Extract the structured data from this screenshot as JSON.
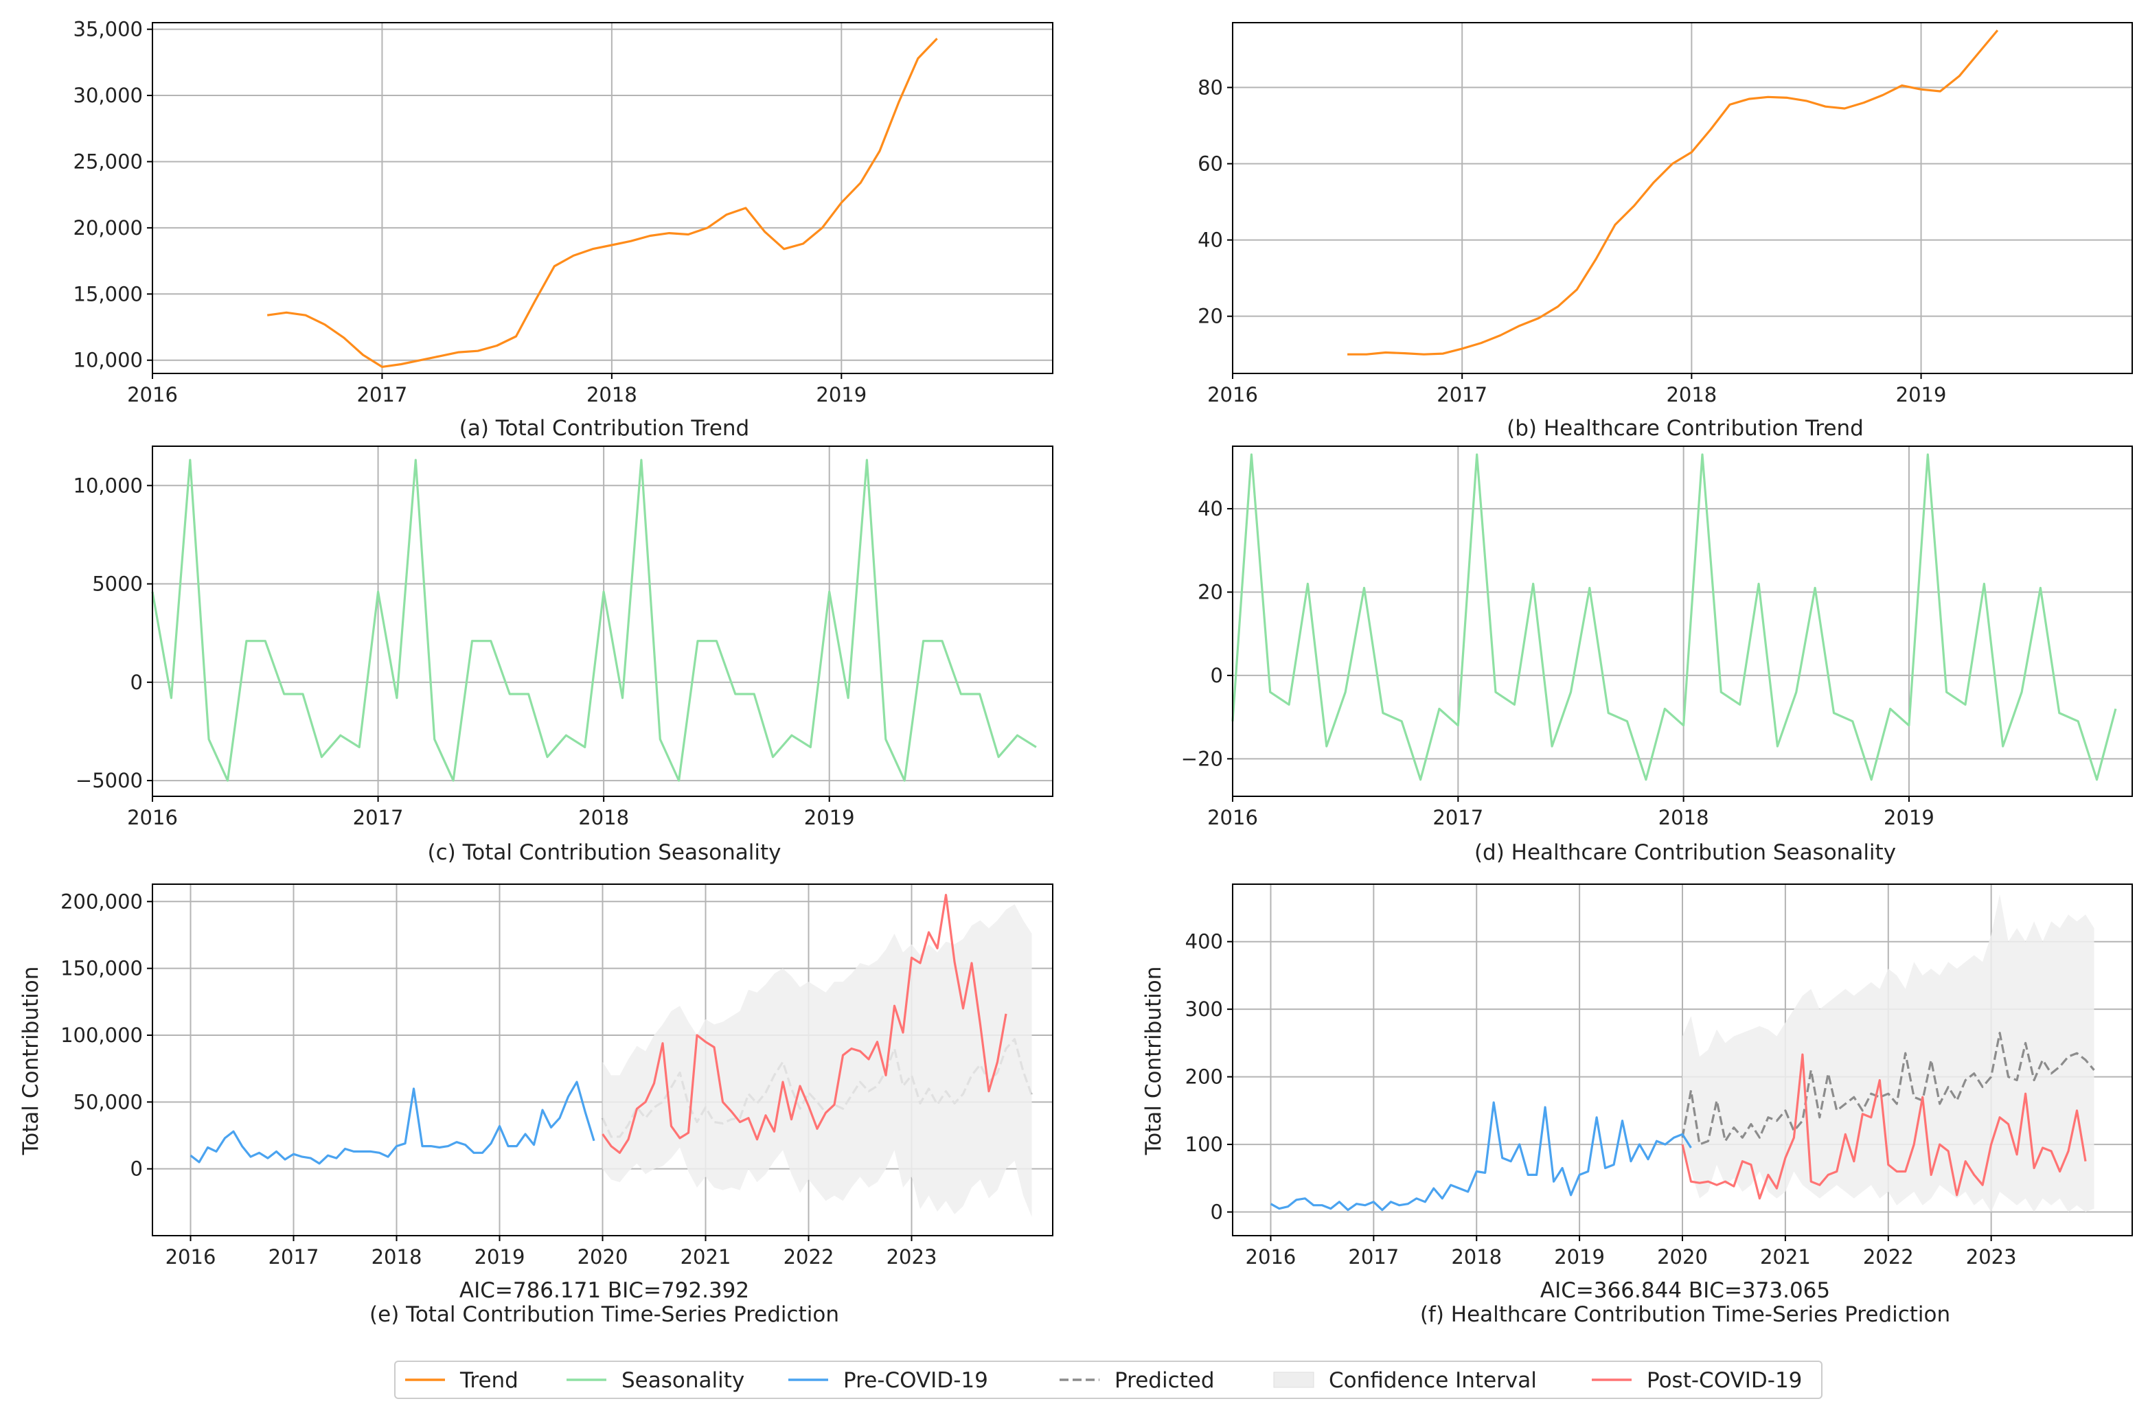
{
  "colors": {
    "trend": "#ff8c1a",
    "seasonality": "#8ee0a3",
    "pre_covid": "#4aa3f0",
    "predicted": "#8c8c8c",
    "confidence": "#eeeeee",
    "post_covid": "#ff7373",
    "grid": "#b4b4b4",
    "axis": "#000000"
  },
  "legend": [
    {
      "key": "trend",
      "label": "Trend",
      "style": "line"
    },
    {
      "key": "seasonality",
      "label": "Seasonality",
      "style": "line"
    },
    {
      "key": "pre_covid",
      "label": "Pre-COVID-19",
      "style": "line"
    },
    {
      "key": "predicted",
      "label": "Predicted",
      "style": "dashed"
    },
    {
      "key": "confidence",
      "label": "Confidence Interval",
      "style": "patch"
    },
    {
      "key": "post_covid",
      "label": "Post-COVID-19",
      "style": "line"
    }
  ],
  "chart_data": [
    {
      "id": "a",
      "type": "line",
      "caption": "(a) Total Contribution Trend",
      "xlim": [
        2016,
        2019.92
      ],
      "ylim": [
        9000,
        35500
      ],
      "grid": true,
      "xticks": [
        2016,
        2017,
        2018,
        2019
      ],
      "xtick_labels": [
        "2016",
        "2017",
        "2018",
        "2019"
      ],
      "yticks": [
        10000,
        15000,
        20000,
        25000,
        30000,
        35000
      ],
      "ytick_labels": [
        "10,000",
        "15,000",
        "20,000",
        "25,000",
        "30,000",
        "35,000"
      ],
      "series": [
        {
          "name": "Trend",
          "color_key": "trend",
          "x0": 2016.5,
          "step": 0.08333,
          "values": [
            13400,
            13600,
            13400,
            12700,
            11700,
            10400,
            9500,
            9700,
            10000,
            10300,
            10600,
            10700,
            11100,
            11800,
            14500,
            17100,
            17900,
            18400,
            18700,
            19000,
            19400,
            19600,
            19500,
            20000,
            21000,
            21500,
            19700,
            18400,
            18800,
            20000,
            21900,
            23400,
            25800,
            29500,
            32800,
            34300
          ]
        }
      ]
    },
    {
      "id": "b",
      "type": "line",
      "caption": "(b) Healthcare Contribution Trend",
      "xlim": [
        2016,
        2019.92
      ],
      "ylim": [
        5,
        97
      ],
      "grid": true,
      "xticks": [
        2016,
        2017,
        2018,
        2019
      ],
      "xtick_labels": [
        "2016",
        "2017",
        "2018",
        "2019"
      ],
      "yticks": [
        20,
        40,
        60,
        80
      ],
      "ytick_labels": [
        "20",
        "40",
        "60",
        "80"
      ],
      "series": [
        {
          "name": "Trend",
          "color_key": "trend",
          "x0": 2016.5,
          "step": 0.08333,
          "values": [
            10,
            10,
            10.5,
            10.3,
            10,
            10.2,
            11.5,
            13,
            15,
            17.5,
            19.5,
            22.5,
            27,
            35,
            44,
            49,
            55,
            60,
            63,
            69,
            75.5,
            77,
            77.5,
            77.3,
            76.5,
            75,
            74.5,
            76,
            78,
            80.5,
            79.5,
            79,
            83,
            89,
            95
          ]
        }
      ]
    },
    {
      "id": "c",
      "type": "line",
      "caption": "(c) Total Contribution Seasonality",
      "xlim": [
        2016,
        2019.99
      ],
      "ylim": [
        -5800,
        12000
      ],
      "grid": true,
      "xticks": [
        2016,
        2017,
        2018,
        2019
      ],
      "xtick_labels": [
        "2016",
        "2017",
        "2018",
        "2019"
      ],
      "yticks": [
        -5000,
        0,
        5000,
        10000
      ],
      "ytick_labels": [
        "−5000",
        "0",
        "5000",
        "10,000"
      ],
      "series": [
        {
          "name": "Seasonality",
          "color_key": "seasonality",
          "x0": 2016.0,
          "step": 0.08333,
          "values": [
            4600,
            -800,
            11300,
            -2900,
            -5000,
            2100,
            2100,
            -600,
            -600,
            -3800,
            -2700,
            -3300,
            4600,
            -800,
            11300,
            -2900,
            -5000,
            2100,
            2100,
            -600,
            -600,
            -3800,
            -2700,
            -3300,
            4600,
            -800,
            11300,
            -2900,
            -5000,
            2100,
            2100,
            -600,
            -600,
            -3800,
            -2700,
            -3300,
            4600,
            -800,
            11300,
            -2900,
            -5000,
            2100,
            2100,
            -600,
            -600,
            -3800,
            -2700,
            -3300
          ]
        }
      ]
    },
    {
      "id": "d",
      "type": "line",
      "caption": "(d) Healthcare Contribution Seasonality",
      "xlim": [
        2016,
        2019.99
      ],
      "ylim": [
        -29,
        55
      ],
      "grid": true,
      "xticks": [
        2016,
        2017,
        2018,
        2019
      ],
      "xtick_labels": [
        "2016",
        "2017",
        "2018",
        "2019"
      ],
      "yticks": [
        -20,
        0,
        20,
        40
      ],
      "ytick_labels": [
        "−20",
        "0",
        "20",
        "40"
      ],
      "series": [
        {
          "name": "Seasonality",
          "color_key": "seasonality",
          "x0": 2016.0,
          "step": 0.08333,
          "values": [
            -11,
            53,
            -4,
            -7,
            22,
            -17,
            -4,
            21,
            -9,
            -11,
            -25,
            -8,
            -12,
            53,
            -4,
            -7,
            22,
            -17,
            -4,
            21,
            -9,
            -11,
            -25,
            -8,
            -12,
            53,
            -4,
            -7,
            22,
            -17,
            -4,
            21,
            -9,
            -11,
            -25,
            -8,
            -12,
            53,
            -4,
            -7,
            22,
            -17,
            -4,
            21,
            -9,
            -11,
            -25,
            -8
          ]
        }
      ]
    },
    {
      "id": "e",
      "type": "line",
      "caption": "(e) Total Contribution Time-Series Prediction",
      "annotation": "AIC=786.171 BIC=792.392",
      "ylabel": "Total Contribution",
      "xlim": [
        2015.63,
        2024.37
      ],
      "ylim": [
        -50000,
        213000
      ],
      "grid": true,
      "xticks": [
        2016,
        2017,
        2018,
        2019,
        2020,
        2021,
        2022,
        2023
      ],
      "xtick_labels": [
        "2016",
        "2017",
        "2018",
        "2019",
        "2020",
        "2021",
        "2022",
        "2023"
      ],
      "yticks": [
        0,
        50000,
        100000,
        150000,
        200000
      ],
      "ytick_labels": [
        "0",
        "50,000",
        "100,000",
        "150,000",
        "200,000"
      ],
      "series": [
        {
          "name": "Pre-COVID-19",
          "color_key": "pre_covid",
          "x0": 2016.0,
          "step": 0.08333,
          "values": [
            10000,
            5000,
            16000,
            13000,
            23000,
            28000,
            17000,
            9000,
            12000,
            8000,
            13000,
            7000,
            11000,
            9000,
            8000,
            4000,
            10000,
            8000,
            15000,
            13000,
            13000,
            13000,
            12000,
            9000,
            17000,
            19000,
            60000,
            17000,
            17000,
            16000,
            17000,
            20000,
            18000,
            12000,
            12000,
            19000,
            32000,
            17000,
            17000,
            26000,
            18000,
            44000,
            31000,
            38000,
            54000,
            65000,
            42000,
            21000
          ]
        },
        {
          "name": "Predicted",
          "color_key": "predicted",
          "dashed": true,
          "x0": 2020.0,
          "step": 0.08333,
          "values": [
            38000,
            24000,
            24000,
            33000,
            46000,
            38000,
            46000,
            50000,
            61000,
            72000,
            48000,
            35000,
            46000,
            35000,
            34000,
            37000,
            38000,
            56000,
            49000,
            57000,
            70000,
            80000,
            60000,
            45000,
            57000,
            50000,
            42000,
            48000,
            45000,
            55000,
            65000,
            58000,
            62000,
            73000,
            90000,
            62000,
            70000,
            49000,
            60000,
            48000,
            58000,
            49000,
            56000,
            70000,
            78000,
            65000,
            72000,
            90000,
            97000,
            73000,
            55000
          ]
        },
        {
          "name": "Confidence Interval",
          "color_key": "confidence",
          "band": true,
          "x0": 2020.0,
          "step": 0.08333,
          "upper": [
            80000,
            70000,
            70000,
            82000,
            92000,
            88000,
            100000,
            108000,
            118000,
            122000,
            110000,
            100000,
            112000,
            108000,
            110000,
            114000,
            118000,
            134000,
            132000,
            138000,
            146000,
            150000,
            144000,
            136000,
            140000,
            136000,
            132000,
            140000,
            140000,
            146000,
            154000,
            152000,
            156000,
            164000,
            176000,
            162000,
            168000,
            160000,
            168000,
            162000,
            170000,
            168000,
            172000,
            182000,
            186000,
            180000,
            186000,
            194000,
            198000,
            186000,
            176000
          ],
          "lower": [
            0,
            -8000,
            -10000,
            -2000,
            4000,
            -4000,
            0,
            2000,
            8000,
            16000,
            -2000,
            -14000,
            -6000,
            -14000,
            -16000,
            -14000,
            -16000,
            0,
            -10000,
            -4000,
            6000,
            14000,
            -4000,
            -18000,
            -8000,
            -16000,
            -24000,
            -20000,
            -24000,
            -14000,
            -6000,
            -14000,
            -10000,
            0,
            14000,
            -14000,
            -6000,
            -30000,
            -20000,
            -32000,
            -24000,
            -34000,
            -28000,
            -14000,
            -8000,
            -22000,
            -16000,
            0,
            6000,
            -20000,
            -36000
          ]
        },
        {
          "name": "Post-COVID-19",
          "color_key": "post_covid",
          "x0": 2020.0,
          "step": 0.08333,
          "values": [
            26000,
            17000,
            12000,
            22000,
            45000,
            50000,
            64000,
            94000,
            32000,
            23000,
            27000,
            100000,
            95000,
            91000,
            50000,
            43000,
            35000,
            38000,
            22000,
            40000,
            28000,
            65000,
            37000,
            62000,
            47000,
            30000,
            42000,
            48000,
            85000,
            90000,
            88000,
            82000,
            95000,
            70000,
            122000,
            102000,
            158000,
            154000,
            177000,
            165000,
            205000,
            155000,
            120000,
            154000,
            108000,
            58000,
            80000,
            116000
          ]
        }
      ]
    },
    {
      "id": "f",
      "type": "line",
      "caption": "(f) Healthcare Contribution Time-Series Prediction",
      "annotation": "AIC=366.844 BIC=373.065",
      "ylabel": "Total Contribution",
      "xlim": [
        2015.63,
        2024.37
      ],
      "ylim": [
        -35,
        485
      ],
      "grid": true,
      "xticks": [
        2016,
        2017,
        2018,
        2019,
        2020,
        2021,
        2022,
        2023
      ],
      "xtick_labels": [
        "2016",
        "2017",
        "2018",
        "2019",
        "2020",
        "2021",
        "2022",
        "2023"
      ],
      "yticks": [
        0,
        100,
        200,
        300,
        400
      ],
      "ytick_labels": [
        "0",
        "100",
        "200",
        "300",
        "400"
      ],
      "series": [
        {
          "name": "Confidence Interval",
          "color_key": "confidence",
          "band": true,
          "x0": 2020.0,
          "step": 0.08333,
          "upper": [
            260,
            290,
            230,
            240,
            270,
            250,
            260,
            265,
            270,
            275,
            270,
            260,
            280,
            300,
            320,
            330,
            300,
            310,
            320,
            330,
            320,
            330,
            340,
            330,
            360,
            350,
            330,
            370,
            350,
            360,
            350,
            370,
            360,
            370,
            380,
            370,
            410,
            470,
            400,
            420,
            400,
            430,
            400,
            430,
            420,
            440,
            430,
            440,
            420
          ],
          "lower": [
            100,
            60,
            20,
            30,
            70,
            40,
            50,
            30,
            40,
            60,
            30,
            20,
            30,
            60,
            40,
            30,
            20,
            30,
            40,
            30,
            20,
            30,
            40,
            20,
            30,
            10,
            20,
            30,
            10,
            20,
            40,
            30,
            20,
            30,
            10,
            20,
            0,
            30,
            20,
            10,
            20,
            0,
            20,
            10,
            20,
            0,
            10,
            0,
            5
          ]
        },
        {
          "name": "Predicted",
          "color_key": "predicted",
          "dashed": true,
          "x0": 2020.0,
          "step": 0.08333,
          "values": [
            110,
            180,
            100,
            105,
            165,
            105,
            125,
            110,
            130,
            110,
            140,
            135,
            150,
            120,
            135,
            210,
            140,
            205,
            150,
            160,
            170,
            150,
            175,
            170,
            175,
            160,
            235,
            170,
            165,
            225,
            160,
            185,
            165,
            195,
            205,
            185,
            200,
            265,
            200,
            195,
            250,
            195,
            225,
            205,
            215,
            230,
            235,
            225,
            210
          ]
        },
        {
          "name": "Pre-COVID-19",
          "color_key": "pre_covid",
          "x0": 2016.0,
          "step": 0.08333,
          "values": [
            12,
            5,
            8,
            18,
            20,
            10,
            10,
            5,
            15,
            3,
            12,
            10,
            15,
            3,
            15,
            10,
            12,
            20,
            15,
            35,
            20,
            40,
            35,
            30,
            60,
            58,
            162,
            80,
            75,
            100,
            55,
            55,
            155,
            45,
            65,
            25,
            55,
            60,
            140,
            65,
            70,
            135,
            75,
            100,
            78,
            105,
            100,
            110,
            115,
            95
          ]
        },
        {
          "name": "Post-COVID-19",
          "color_key": "post_covid",
          "x0": 2020.0,
          "step": 0.08333,
          "values": [
            100,
            45,
            43,
            45,
            40,
            45,
            38,
            75,
            70,
            20,
            55,
            35,
            80,
            110,
            233,
            45,
            40,
            55,
            60,
            115,
            75,
            145,
            140,
            195,
            70,
            60,
            60,
            100,
            170,
            55,
            100,
            90,
            25,
            75,
            55,
            40,
            100,
            140,
            130,
            85,
            175,
            65,
            95,
            90,
            60,
            90,
            150,
            75
          ]
        }
      ]
    }
  ]
}
